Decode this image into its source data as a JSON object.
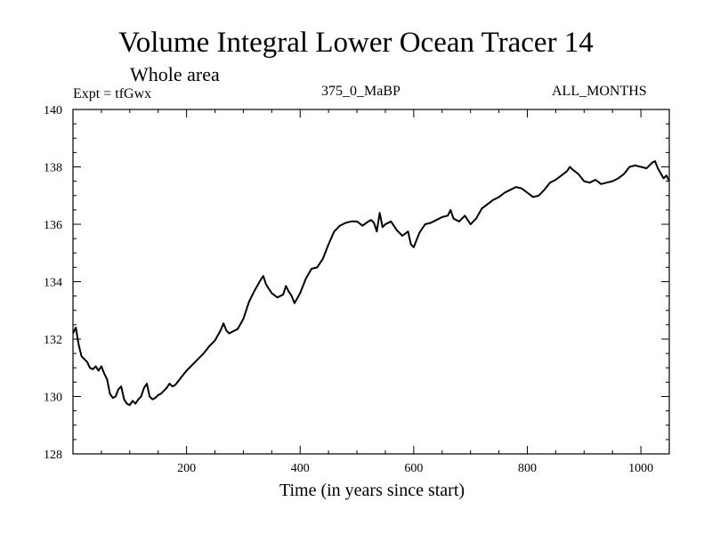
{
  "chart_data": {
    "type": "line",
    "title": "Volume Integral Lower Ocean Tracer 14",
    "subtitle": "Whole area",
    "experiment_label": "Expt = tfGwx",
    "run_label": "375_0_MaBP",
    "months_label": "ALL_MONTHS",
    "xlabel": "Time (in years since start)",
    "ylabel": "",
    "xlim": [
      0,
      1050
    ],
    "ylim": [
      128,
      140
    ],
    "xticks": [
      200,
      400,
      600,
      800,
      1000
    ],
    "yticks": [
      128,
      130,
      132,
      134,
      136,
      138,
      140
    ],
    "series": [
      {
        "name": "Lower Ocean Tracer 14",
        "color": "#000000",
        "x": [
          0,
          5,
          10,
          15,
          20,
          25,
          30,
          35,
          40,
          45,
          50,
          55,
          60,
          65,
          70,
          75,
          80,
          85,
          90,
          95,
          100,
          105,
          110,
          115,
          120,
          125,
          130,
          135,
          140,
          145,
          150,
          155,
          160,
          165,
          170,
          175,
          180,
          190,
          200,
          210,
          220,
          230,
          240,
          250,
          260,
          265,
          270,
          275,
          280,
          290,
          300,
          310,
          320,
          330,
          335,
          340,
          350,
          360,
          370,
          375,
          380,
          385,
          390,
          400,
          410,
          420,
          430,
          440,
          450,
          460,
          470,
          480,
          490,
          500,
          510,
          520,
          525,
          530,
          535,
          540,
          545,
          550,
          560,
          570,
          580,
          590,
          595,
          600,
          605,
          610,
          620,
          630,
          640,
          650,
          660,
          665,
          670,
          680,
          690,
          700,
          710,
          720,
          730,
          740,
          750,
          760,
          770,
          780,
          790,
          800,
          810,
          820,
          830,
          840,
          850,
          860,
          870,
          875,
          880,
          890,
          900,
          910,
          920,
          930,
          940,
          950,
          960,
          970,
          980,
          990,
          1000,
          1010,
          1020,
          1025,
          1030,
          1040,
          1045,
          1050
        ],
        "values": [
          132.2,
          132.4,
          131.8,
          131.4,
          131.3,
          131.2,
          131.0,
          130.95,
          131.05,
          130.9,
          131.05,
          130.8,
          130.6,
          130.1,
          129.95,
          130.0,
          130.25,
          130.35,
          129.9,
          129.75,
          129.7,
          129.85,
          129.75,
          129.9,
          130.0,
          130.3,
          130.45,
          130.0,
          129.9,
          129.95,
          130.05,
          130.1,
          130.2,
          130.3,
          130.45,
          130.35,
          130.4,
          130.65,
          130.9,
          131.1,
          131.3,
          131.5,
          131.75,
          131.95,
          132.3,
          132.55,
          132.3,
          132.2,
          132.25,
          132.35,
          132.7,
          133.3,
          133.7,
          134.05,
          134.2,
          133.9,
          133.6,
          133.45,
          133.55,
          133.85,
          133.65,
          133.5,
          133.25,
          133.6,
          134.1,
          134.45,
          134.5,
          134.8,
          135.3,
          135.75,
          135.95,
          136.05,
          136.1,
          136.1,
          135.95,
          136.1,
          136.15,
          136.05,
          135.75,
          136.4,
          135.9,
          136.0,
          136.1,
          135.8,
          135.6,
          135.75,
          135.3,
          135.2,
          135.45,
          135.7,
          136.0,
          136.05,
          136.15,
          136.25,
          136.3,
          136.5,
          136.2,
          136.1,
          136.3,
          136.0,
          136.2,
          136.55,
          136.7,
          136.85,
          136.95,
          137.1,
          137.2,
          137.3,
          137.25,
          137.1,
          136.95,
          137.0,
          137.2,
          137.45,
          137.55,
          137.7,
          137.85,
          138.0,
          137.9,
          137.75,
          137.5,
          137.45,
          137.55,
          137.4,
          137.45,
          137.5,
          137.6,
          137.75,
          138.0,
          138.05,
          138.0,
          137.95,
          138.15,
          138.2,
          137.95,
          137.6,
          137.7,
          137.5
        ]
      }
    ]
  }
}
